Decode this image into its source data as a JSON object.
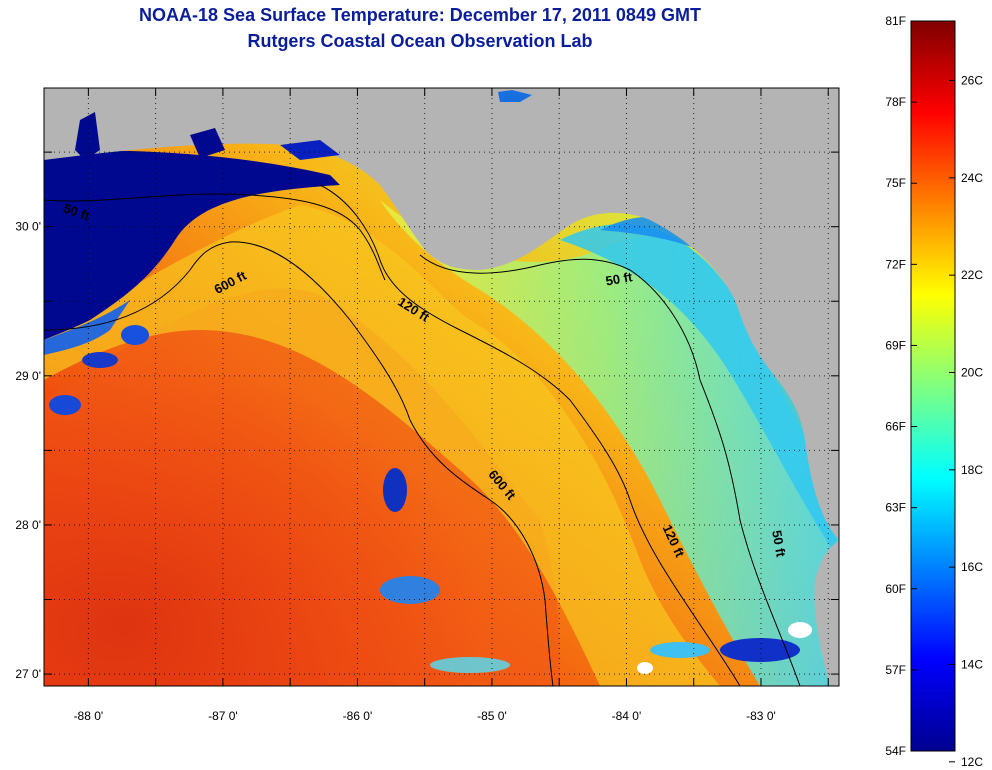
{
  "title": {
    "line1": "NOAA-18 Sea Surface Temperature:  December 17, 2011 0849 GMT",
    "line2": "Rutgers Coastal Ocean Observation Lab"
  },
  "map": {
    "lon_range": [
      -88.33,
      -82.42
    ],
    "lat_range": [
      26.92,
      30.93
    ],
    "x_ticks": [
      {
        "value": -88,
        "label": "-88 0'"
      },
      {
        "value": -87,
        "label": "-87 0'"
      },
      {
        "value": -86,
        "label": "-86 0'"
      },
      {
        "value": -85,
        "label": "-85 0'"
      },
      {
        "value": -84,
        "label": "-84 0'"
      },
      {
        "value": -83,
        "label": "-83 0'"
      }
    ],
    "y_ticks": [
      {
        "value": 27,
        "label": "27 0'"
      },
      {
        "value": 28,
        "label": "28 0'"
      },
      {
        "value": 29,
        "label": "29 0'"
      },
      {
        "value": 30,
        "label": "30 0'"
      }
    ],
    "grid": "dotted",
    "land_color": "#b4b4b4",
    "contours": [
      {
        "label": "50 ft",
        "lon": -88.1,
        "lat": 30.07,
        "rotate": 20
      },
      {
        "label": "600 ft",
        "lon": -86.93,
        "lat": 29.6,
        "rotate": -28
      },
      {
        "label": "120 ft",
        "lon": -85.6,
        "lat": 29.42,
        "rotate": 32
      },
      {
        "label": "50 ft",
        "lon": -84.05,
        "lat": 29.62,
        "rotate": -10
      },
      {
        "label": "600 ft",
        "lon": -84.95,
        "lat": 28.25,
        "rotate": 50
      },
      {
        "label": "120 ft",
        "lon": -83.68,
        "lat": 27.88,
        "rotate": 65
      },
      {
        "label": "50 ft",
        "lon": -82.9,
        "lat": 27.87,
        "rotate": 80
      }
    ]
  },
  "colorbar": {
    "f_labels": [
      {
        "value": 81,
        "label": "81F"
      },
      {
        "value": 78,
        "label": "78F"
      },
      {
        "value": 75,
        "label": "75F"
      },
      {
        "value": 72,
        "label": "72F"
      },
      {
        "value": 69,
        "label": "69F"
      },
      {
        "value": 66,
        "label": "66F"
      },
      {
        "value": 63,
        "label": "63F"
      },
      {
        "value": 60,
        "label": "60F"
      },
      {
        "value": 57,
        "label": "57F"
      },
      {
        "value": 54,
        "label": "54F"
      }
    ],
    "c_labels": [
      {
        "value": 26,
        "label": "26C"
      },
      {
        "value": 24,
        "label": "24C"
      },
      {
        "value": 22,
        "label": "22C"
      },
      {
        "value": 20,
        "label": "20C"
      },
      {
        "value": 18,
        "label": "18C"
      },
      {
        "value": 16,
        "label": "16C"
      },
      {
        "value": 14,
        "label": "14C"
      },
      {
        "value": 12,
        "label": "12C"
      }
    ],
    "colors": [
      "#00008f",
      "#0000ff",
      "#0080ff",
      "#00ffff",
      "#80ff80",
      "#ffff00",
      "#ff8000",
      "#ff0000",
      "#800000"
    ]
  }
}
